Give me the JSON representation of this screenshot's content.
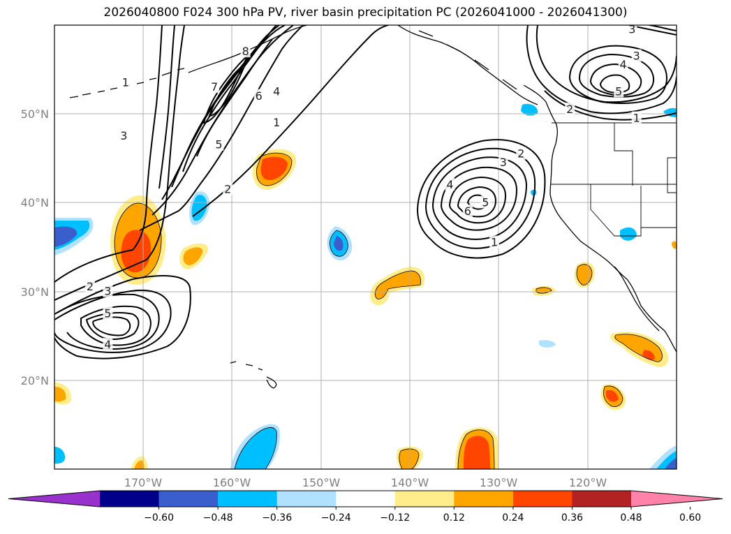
{
  "title": "2026040800 F024 300 hPa PV, river basin precipitation PC (2026041000 - 2026041300)",
  "map": {
    "projection": "equirectangular",
    "lon_range": [
      -180,
      -110
    ],
    "lat_range": [
      10,
      60
    ],
    "gridlines": true,
    "lat_ticks": [
      {
        "value": 20,
        "label": "20°N"
      },
      {
        "value": 30,
        "label": "30°N"
      },
      {
        "value": 40,
        "label": "40°N"
      },
      {
        "value": 50,
        "label": "50°N"
      }
    ],
    "lon_ticks": [
      {
        "value": -170,
        "label": "170°W"
      },
      {
        "value": -160,
        "label": "160°W"
      },
      {
        "value": -150,
        "label": "150°W"
      },
      {
        "value": -140,
        "label": "140°W"
      },
      {
        "value": -130,
        "label": "130°W"
      },
      {
        "value": -120,
        "label": "120°W"
      }
    ]
  },
  "colorbar": {
    "ticks": [
      "−0.60",
      "−0.48",
      "−0.36",
      "−0.24",
      "−0.12",
      "0.12",
      "0.24",
      "0.36",
      "0.48",
      "0.60"
    ],
    "colors": [
      "#9932cc",
      "#00008b",
      "#3a5fcd",
      "#00bfff",
      "#b0e2ff",
      "#ffffff",
      "#ffec8b",
      "#ffa500",
      "#ff4500",
      "#b22222",
      "#ff82ab"
    ]
  },
  "pv_contours": {
    "color": "#000000",
    "labels": [
      {
        "text": "1",
        "lon": -172,
        "lat": 53.5
      },
      {
        "text": "3",
        "lon": -172.2,
        "lat": 47.5
      },
      {
        "text": "7",
        "lon": -162,
        "lat": 53
      },
      {
        "text": "6",
        "lon": -157,
        "lat": 52
      },
      {
        "text": "4",
        "lon": -155,
        "lat": 52.5
      },
      {
        "text": "5",
        "lon": -161.5,
        "lat": 46.5
      },
      {
        "text": "1",
        "lon": -155,
        "lat": 49
      },
      {
        "text": "2",
        "lon": -160.5,
        "lat": 41.5
      },
      {
        "text": "8",
        "lon": -158.5,
        "lat": 57
      },
      {
        "text": "2",
        "lon": -176,
        "lat": 30.5
      },
      {
        "text": "3",
        "lon": -174,
        "lat": 30
      },
      {
        "text": "5",
        "lon": -174,
        "lat": 27.5
      },
      {
        "text": "4",
        "lon": -174,
        "lat": 24
      },
      {
        "text": "2",
        "lon": -127.5,
        "lat": 45.5
      },
      {
        "text": "3",
        "lon": -129.5,
        "lat": 44.5
      },
      {
        "text": "4",
        "lon": -135.5,
        "lat": 42
      },
      {
        "text": "5",
        "lon": -131.5,
        "lat": 40
      },
      {
        "text": "6",
        "lon": -133.5,
        "lat": 39
      },
      {
        "text": "1",
        "lon": -130.5,
        "lat": 35.5
      },
      {
        "text": "3",
        "lon": -115,
        "lat": 59.5
      },
      {
        "text": "4",
        "lon": -116,
        "lat": 55.5
      },
      {
        "text": "3",
        "lon": -114.5,
        "lat": 56.5
      },
      {
        "text": "5",
        "lon": -116.5,
        "lat": 52.5
      },
      {
        "text": "2",
        "lon": -122,
        "lat": 50.5
      },
      {
        "text": "1",
        "lon": -114.5,
        "lat": 49.5
      }
    ]
  }
}
